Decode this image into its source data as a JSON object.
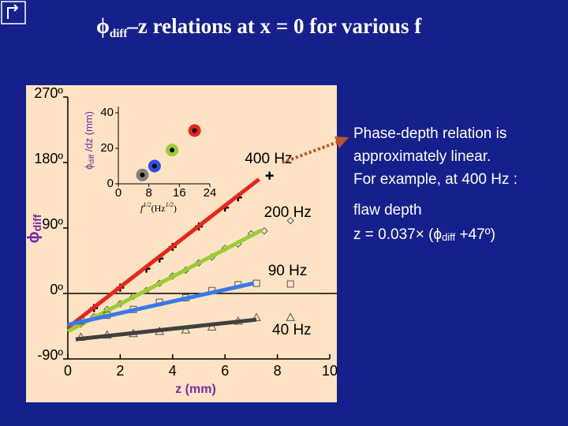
{
  "slide": {
    "title": {
      "symbol": "ϕ",
      "subscript": "diff",
      "text": "–z relations at x = 0 for various f"
    },
    "note": [
      "Phase-depth relation is",
      "approximately linear.",
      "For example, at 400 Hz :"
    ],
    "formula": {
      "line1": "flaw depth",
      "prefix": "z = 0.037× (",
      "symbol": "ϕ",
      "subscript": "diff",
      "suffix": " +47º)"
    }
  },
  "chart_data": [
    {
      "type": "scatter",
      "xlabel": "z (mm)",
      "ylabel": {
        "symbol": "ϕ",
        "subscript": "diff"
      },
      "xlim": [
        0,
        10
      ],
      "xticks": [
        0,
        2,
        4,
        6,
        8,
        10
      ],
      "ylim": [
        -90,
        270
      ],
      "yticks": [
        {
          "value": -90,
          "label": "-90º"
        },
        {
          "value": 0,
          "label": "0º"
        },
        {
          "value": 90,
          "label": "90º"
        },
        {
          "value": 180,
          "label": "180º"
        },
        {
          "value": 270,
          "label": "270º"
        }
      ],
      "series": [
        {
          "name": "400 Hz",
          "color": "#e8261c",
          "marker": "plus",
          "x": [
            1,
            2,
            3,
            3.5,
            4,
            5,
            6,
            6.5,
            7.7
          ],
          "values": [
            -20,
            8,
            34,
            48,
            64,
            92,
            118,
            132,
            162
          ],
          "fit": {
            "x": [
              0,
              7.3
            ],
            "values": [
              -47,
              157
            ]
          }
        },
        {
          "name": "200 Hz",
          "color": "#9acd32",
          "marker": "diamond",
          "x": [
            0.5,
            1,
            1.5,
            2,
            2.5,
            3,
            3.5,
            4,
            4.5,
            5,
            5.5,
            6,
            6.5,
            7,
            7.5,
            8.5
          ],
          "values": [
            -42,
            -32,
            -22,
            -14,
            -4,
            4,
            14,
            24,
            32,
            42,
            50,
            62,
            68,
            82,
            86,
            100
          ],
          "fit": {
            "x": [
              0,
              7.4
            ],
            "values": [
              -52,
              87
            ]
          }
        },
        {
          "name": "90 Hz",
          "color": "#3a78e8",
          "marker": "square",
          "x": [
            0.5,
            1.5,
            2.5,
            3.5,
            4.5,
            5.5,
            6.5,
            7.2,
            8.5
          ],
          "values": [
            -38,
            -30,
            -22,
            -12,
            -6,
            4,
            12,
            14,
            13
          ],
          "fit": {
            "x": [
              0,
              7.1
            ],
            "values": [
              -43,
              14
            ]
          }
        },
        {
          "name": "40 Hz",
          "color": "#404040",
          "marker": "triangle",
          "x": [
            0.5,
            1.5,
            2.5,
            3.5,
            4.5,
            5.5,
            6.5,
            7.2,
            8.5
          ],
          "values": [
            -60,
            -57,
            -55,
            -52,
            -50,
            -46,
            -38,
            -33,
            -33
          ],
          "fit": {
            "x": [
              0.3,
              7.2
            ],
            "values": [
              -63,
              -36
            ]
          }
        }
      ]
    },
    {
      "type": "scatter",
      "xlabel": {
        "base": "f",
        "exp": "1/2",
        "unit": "(Hz",
        "unit_exp": "1/2",
        "close": ")"
      },
      "ylabel": {
        "symbol": "ϕ",
        "subscript": "diff",
        "text": " /dz (mm)"
      },
      "xlim": [
        0,
        24
      ],
      "xticks": [
        0,
        8,
        16,
        24
      ],
      "ylim": [
        0,
        40
      ],
      "yticks": [
        0,
        20,
        40
      ],
      "x": [
        6.3,
        9.5,
        14.1,
        20
      ],
      "values": [
        5,
        10,
        19,
        30
      ],
      "colors": [
        "#808080",
        "#2a4ee8",
        "#9acd32",
        "#e8261c"
      ]
    }
  ]
}
